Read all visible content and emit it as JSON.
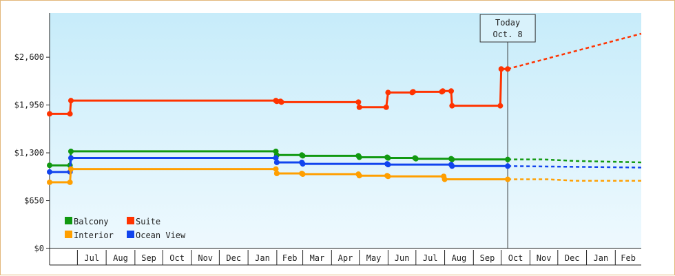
{
  "chart_data": {
    "type": "line",
    "title": "",
    "xlabel": "",
    "ylabel": "",
    "ylim": [
      0,
      3200
    ],
    "y_ticks": [
      {
        "value": 0,
        "label": "$0"
      },
      {
        "value": 650,
        "label": "$650"
      },
      {
        "value": 1300,
        "label": "$1,300"
      },
      {
        "value": 1950,
        "label": "$1,950"
      },
      {
        "value": 2600,
        "label": "$2,600"
      }
    ],
    "x_start": "2017-06-01",
    "x_end": "2018-02-28",
    "months": [
      {
        "label": "Jul",
        "start": "2017-07-01"
      },
      {
        "label": "Aug",
        "start": "2017-08-01"
      },
      {
        "label": "Sep",
        "start": "2017-09-01"
      },
      {
        "label": "Oct",
        "start": "2017-10-01"
      },
      {
        "label": "Nov",
        "start": "2017-11-01"
      },
      {
        "label": "Dec",
        "start": "2017-12-01"
      },
      {
        "label": "Jan",
        "start": "2018-01-01"
      },
      {
        "label": "Feb",
        "start": "2018-02-01"
      },
      {
        "label": "Mar",
        "start": "2018-03-01"
      },
      {
        "label": "Apr",
        "start": "2018-04-01"
      },
      {
        "label": "May",
        "start": "2018-05-01"
      },
      {
        "label": "Jun",
        "start": "2018-06-01"
      },
      {
        "label": "Jul",
        "start": "2018-07-01"
      },
      {
        "label": "Aug",
        "start": "2018-08-01"
      },
      {
        "label": "Sep",
        "start": "2018-09-01"
      },
      {
        "label": "Oct",
        "start": "2018-10-01"
      },
      {
        "label": "Nov",
        "start": "2018-11-01"
      },
      {
        "label": "Dec",
        "start": "2018-12-01"
      },
      {
        "label": "Jan",
        "start": "2019-01-01"
      },
      {
        "label": "Feb",
        "start": "2019-02-01"
      }
    ],
    "range_start": "2017-06-01",
    "range_end": "2019-03-01",
    "today": {
      "label_line1": "Today",
      "label_line2": "Oct. 8",
      "date": "2018-10-08"
    },
    "legend": {
      "position": "bottom-left"
    },
    "series": [
      {
        "name": "Suite",
        "color": "#ff3300",
        "points": [
          [
            "2017-06-01",
            1830
          ],
          [
            "2017-06-23",
            1830
          ],
          [
            "2017-06-24",
            2010
          ],
          [
            "2018-01-31",
            2010
          ],
          [
            "2018-02-01",
            2000
          ],
          [
            "2018-02-05",
            2000
          ],
          [
            "2018-02-06",
            1990
          ],
          [
            "2018-04-30",
            1990
          ],
          [
            "2018-05-01",
            1920
          ],
          [
            "2018-05-30",
            1920
          ],
          [
            "2018-06-01",
            2120
          ],
          [
            "2018-06-27",
            2120
          ],
          [
            "2018-06-28",
            2130
          ],
          [
            "2018-07-29",
            2130
          ],
          [
            "2018-07-30",
            2140
          ],
          [
            "2018-08-08",
            2140
          ],
          [
            "2018-08-09",
            1940
          ],
          [
            "2018-09-30",
            1940
          ],
          [
            "2018-10-01",
            2440
          ],
          [
            "2018-10-08",
            2440
          ]
        ],
        "forecast": [
          [
            "2018-10-08",
            2440
          ],
          [
            "2019-03-01",
            2920
          ]
        ]
      },
      {
        "name": "Balcony",
        "color": "#119911",
        "points": [
          [
            "2017-06-01",
            1130
          ],
          [
            "2017-06-23",
            1130
          ],
          [
            "2017-06-24",
            1320
          ],
          [
            "2018-01-31",
            1320
          ],
          [
            "2018-02-01",
            1270
          ],
          [
            "2018-02-28",
            1270
          ],
          [
            "2018-03-01",
            1260
          ],
          [
            "2018-04-30",
            1260
          ],
          [
            "2018-05-01",
            1240
          ],
          [
            "2018-05-31",
            1240
          ],
          [
            "2018-06-01",
            1230
          ],
          [
            "2018-06-30",
            1230
          ],
          [
            "2018-07-01",
            1220
          ],
          [
            "2018-08-08",
            1220
          ],
          [
            "2018-08-09",
            1210
          ],
          [
            "2018-10-08",
            1210
          ]
        ],
        "forecast": [
          [
            "2018-10-08",
            1210
          ],
          [
            "2018-11-15",
            1210
          ],
          [
            "2018-12-20",
            1190
          ],
          [
            "2019-03-01",
            1170
          ]
        ]
      },
      {
        "name": "Ocean View",
        "color": "#1144ee",
        "points": [
          [
            "2017-06-01",
            1040
          ],
          [
            "2017-06-23",
            1040
          ],
          [
            "2017-06-24",
            1230
          ],
          [
            "2018-01-31",
            1230
          ],
          [
            "2018-02-01",
            1170
          ],
          [
            "2018-02-28",
            1170
          ],
          [
            "2018-03-01",
            1150
          ],
          [
            "2018-05-31",
            1150
          ],
          [
            "2018-06-01",
            1140
          ],
          [
            "2018-08-08",
            1140
          ],
          [
            "2018-08-09",
            1120
          ],
          [
            "2018-10-08",
            1120
          ]
        ],
        "forecast": [
          [
            "2018-10-08",
            1120
          ],
          [
            "2019-03-01",
            1100
          ]
        ]
      },
      {
        "name": "Interior",
        "color": "#ff9f00",
        "points": [
          [
            "2017-06-01",
            900
          ],
          [
            "2017-06-23",
            900
          ],
          [
            "2017-06-24",
            1080
          ],
          [
            "2018-01-31",
            1080
          ],
          [
            "2018-02-01",
            1020
          ],
          [
            "2018-02-28",
            1020
          ],
          [
            "2018-03-01",
            1010
          ],
          [
            "2018-04-30",
            1010
          ],
          [
            "2018-05-01",
            990
          ],
          [
            "2018-05-31",
            990
          ],
          [
            "2018-06-01",
            980
          ],
          [
            "2018-07-31",
            980
          ],
          [
            "2018-08-01",
            940
          ],
          [
            "2018-10-08",
            940
          ]
        ],
        "forecast": [
          [
            "2018-10-08",
            940
          ],
          [
            "2018-11-20",
            940
          ],
          [
            "2018-12-20",
            920
          ],
          [
            "2019-03-01",
            920
          ]
        ]
      }
    ]
  }
}
